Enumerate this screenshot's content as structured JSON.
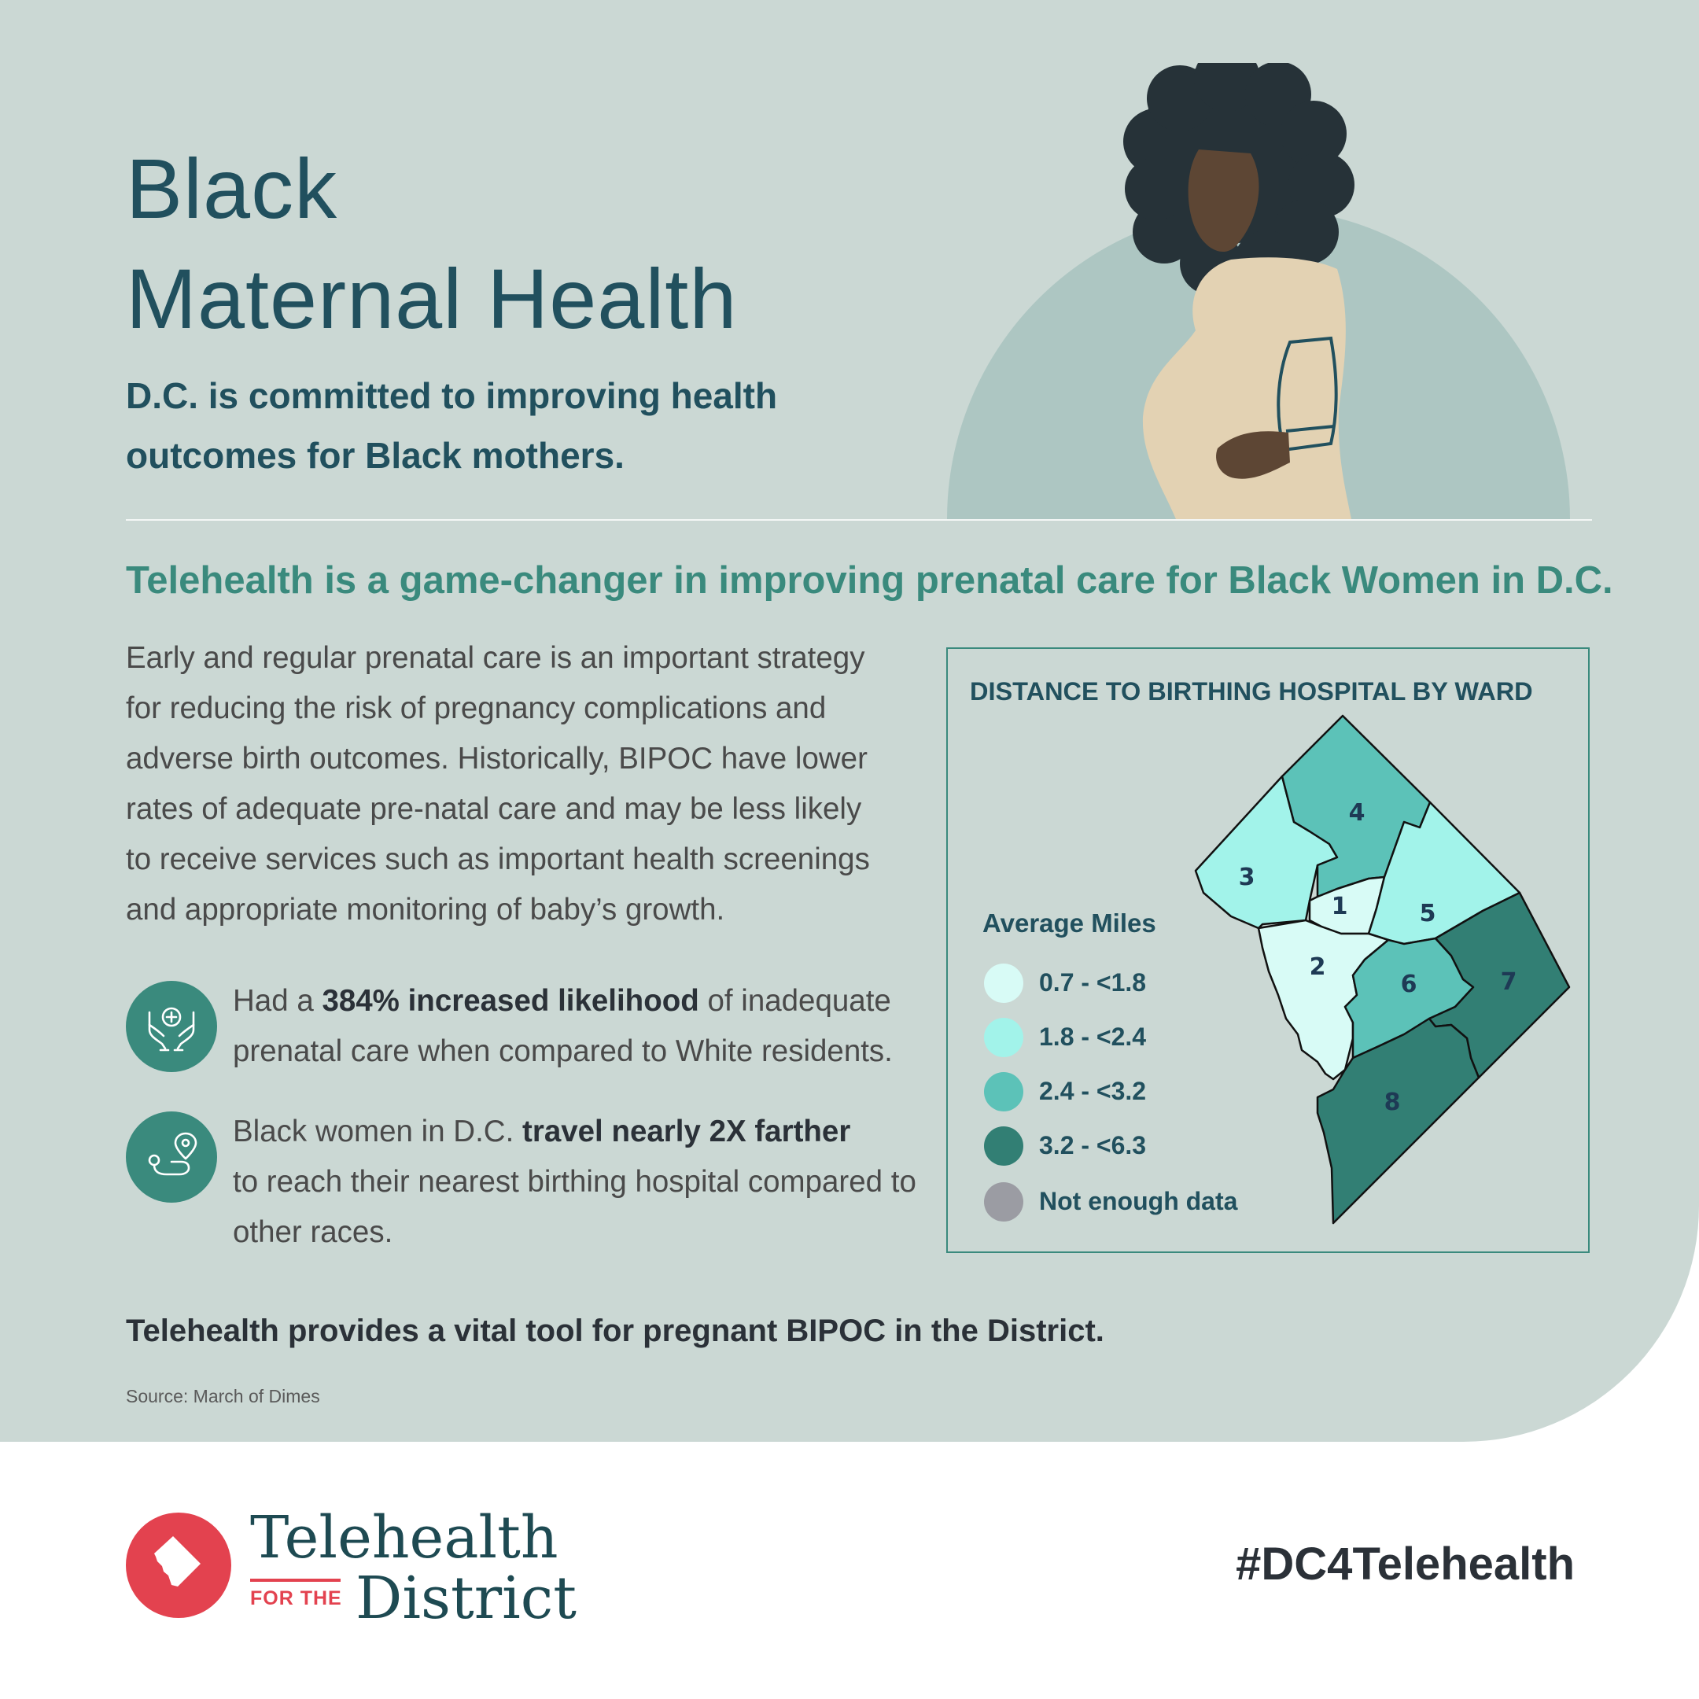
{
  "header": {
    "title_line1": "Black",
    "title_line2": "Maternal Health",
    "subtitle_line1": "D.C. is committed to improving health",
    "subtitle_line2": "outcomes for Black mothers."
  },
  "headline": "Telehealth is a game-changer in improving prenatal care for Black Women in D.C.",
  "body": {
    "lines": [
      "Early and regular prenatal care is an important strategy",
      "for reducing the risk of pregnancy complications and",
      "adverse birth outcomes. Historically, BIPOC have lower",
      "rates of adequate pre-natal care and may be less likely",
      "to receive services such as important health screenings",
      "and appropriate monitoring of baby’s growth."
    ]
  },
  "stats": [
    {
      "icon": "caring-hands-icon",
      "prefix": "Had a ",
      "bold": "384% increased likelihood",
      "suffix": " of inadequate prenatal care when compared to White residents."
    },
    {
      "icon": "route-pin-icon",
      "prefix": "Black women in D.C. ",
      "bold": "travel nearly 2X farther",
      "suffix": " to reach their nearest birthing hospital compared to other races."
    }
  ],
  "map": {
    "title": "DISTANCE TO BIRTHING HOSPITAL BY WARD",
    "legend_title": "Average Miles",
    "legend": [
      {
        "label": "0.7 - <1.8",
        "color": "#d8fbf6"
      },
      {
        "label": "1.8 - <2.4",
        "color": "#a2f3ea"
      },
      {
        "label": "2.4 - <3.2",
        "color": "#5cc2b8"
      },
      {
        "label": "3.2 - <6.3",
        "color": "#327f74"
      },
      {
        "label": "Not enough data",
        "color": "#9b9ca3"
      }
    ],
    "wards": [
      {
        "label": "1",
        "color": "#d8fbf6"
      },
      {
        "label": "2",
        "color": "#d8fbf6"
      },
      {
        "label": "3",
        "color": "#a2f3ea"
      },
      {
        "label": "4",
        "color": "#5cc2b8"
      },
      {
        "label": "5",
        "color": "#a2f3ea"
      },
      {
        "label": "6",
        "color": "#5cc2b8"
      },
      {
        "label": "7",
        "color": "#327f74"
      },
      {
        "label": "8",
        "color": "#327f74"
      }
    ]
  },
  "tagline": "Telehealth provides a vital tool for pregnant BIPOC in the District.",
  "source": "Source: March of Dimes",
  "footer": {
    "logo_word1": "Telehealth",
    "logo_forthe": "FOR THE",
    "logo_word2": "District",
    "hashtag": "#DC4Telehealth"
  },
  "colors": {
    "panel": "#cbd8d4",
    "heading": "#21505e",
    "accent": "#3a8a7d",
    "logo_red": "#e3424f"
  }
}
